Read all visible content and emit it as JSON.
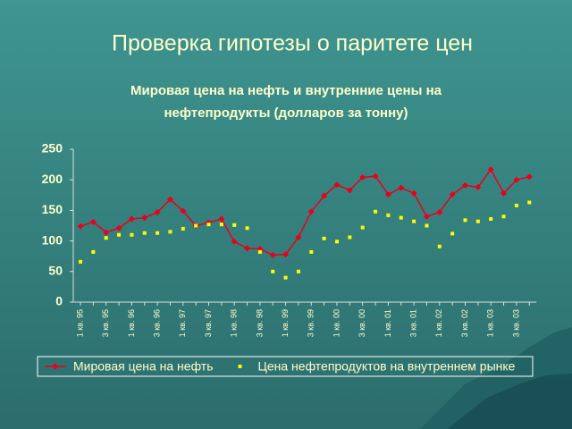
{
  "slide_title": "Проверка гипотезы о паритете цен",
  "chart_data": {
    "type": "line",
    "title": [
      "Мировая цена на нефть и внутренние цены на",
      "нефтепродукты (долларов за тонну)"
    ],
    "categories": [
      "1 кв. 95",
      null,
      "3 кв. 95",
      null,
      "1 кв. 96",
      null,
      "3 кв. 96",
      null,
      "1 кв. 97",
      null,
      "3 кв. 97",
      null,
      "1 кв. 98",
      null,
      "3 кв. 98",
      null,
      "1 кв. 99",
      null,
      "3 кв. 99",
      null,
      "1 кв. 00",
      null,
      "3 кв. 00",
      null,
      "1 кв. 01",
      null,
      "3 кв. 01",
      null,
      "1 кв. 02",
      null,
      "3 кв. 02",
      null,
      "1 кв. 03",
      null,
      "3 кв. 03",
      null
    ],
    "series": [
      {
        "name": "Мировая цена на нефть",
        "color": "#e8001c",
        "marker": "diamond",
        "line": true,
        "values": [
          124,
          131,
          114,
          121,
          136,
          138,
          147,
          168,
          149,
          125,
          130,
          136,
          99,
          88,
          87,
          77,
          78,
          106,
          148,
          174,
          192,
          183,
          204,
          206,
          176,
          187,
          178,
          140,
          147,
          176,
          191,
          188,
          217,
          178,
          200,
          205
        ]
      },
      {
        "name": "Цена нефтепродуктов на внутреннем рынке",
        "color": "#ffff00",
        "marker": "square",
        "line": false,
        "values": [
          66,
          82,
          105,
          110,
          110,
          113,
          113,
          115,
          120,
          125,
          127,
          127,
          126,
          121,
          82,
          50,
          40,
          50,
          82,
          104,
          99,
          106,
          122,
          148,
          142,
          138,
          132,
          125,
          91,
          112,
          134,
          132,
          136,
          140,
          158,
          163
        ]
      }
    ],
    "ylim": [
      0,
      250
    ],
    "yticks": [
      0,
      50,
      100,
      150,
      200,
      250
    ],
    "legend": "bottom"
  }
}
